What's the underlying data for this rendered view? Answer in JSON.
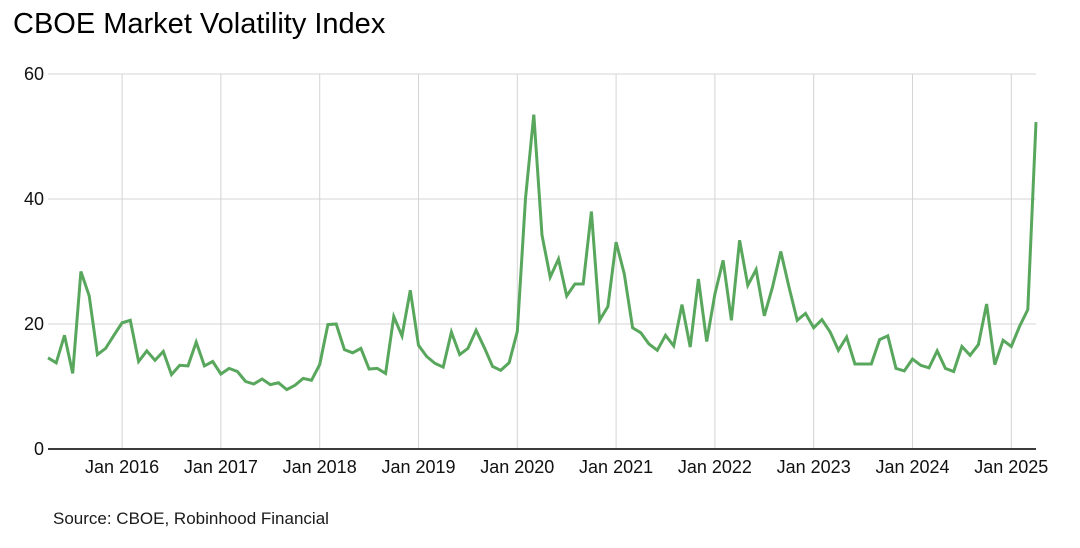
{
  "title": "CBOE Market Volatility Index",
  "source": "Source: CBOE, Robinhood Financial",
  "colors": {
    "line": "#58a75d",
    "grid": "#d4d4d4",
    "axis": "#3b3b3b",
    "text": "#111111",
    "background": "#ffffff"
  },
  "chart_data": {
    "type": "line",
    "title": "CBOE Market Volatility Index",
    "series_name": "CBOE Market Volatility Index (VIX)",
    "frequency": "monthly",
    "start_month": "2015-04",
    "end_month": "2025-04",
    "ylim": [
      0,
      60
    ],
    "y_ticks": [
      0,
      20,
      40,
      60
    ],
    "x_tick_labels": [
      "Jan 2016",
      "Jan 2017",
      "Jan 2018",
      "Jan 2019",
      "Jan 2020",
      "Jan 2021",
      "Jan 2022",
      "Jan 2023",
      "Jan 2024",
      "Jan 2025"
    ],
    "grid": true,
    "legend": false,
    "values": [
      14.6,
      13.8,
      18.2,
      12.1,
      28.4,
      24.5,
      15.1,
      16.1,
      18.2,
      20.2,
      20.6,
      14.0,
      15.7,
      14.2,
      15.6,
      11.9,
      13.4,
      13.3,
      17.1,
      13.3,
      14.0,
      12.0,
      12.9,
      12.4,
      10.8,
      10.4,
      11.2,
      10.3,
      10.6,
      9.5,
      10.2,
      11.3,
      11.0,
      13.5,
      19.9,
      20.0,
      15.9,
      15.4,
      16.1,
      12.8,
      12.9,
      12.1,
      21.2,
      18.1,
      25.4,
      16.6,
      14.8,
      13.7,
      13.1,
      18.7,
      15.1,
      16.1,
      19.0,
      16.2,
      13.2,
      12.6,
      13.8,
      18.8,
      40.1,
      53.5,
      34.2,
      27.5,
      30.4,
      24.5,
      26.4,
      26.4,
      38.0,
      20.6,
      22.8,
      33.1,
      28.0,
      19.4,
      18.6,
      16.8,
      15.8,
      18.2,
      16.5,
      23.1,
      16.3,
      27.2,
      17.2,
      24.8,
      30.2,
      20.6,
      33.4,
      26.2,
      28.7,
      21.3,
      25.9,
      31.6,
      25.9,
      20.6,
      21.7,
      19.4,
      20.7,
      18.7,
      15.8,
      17.9,
      13.6,
      13.6,
      13.6,
      17.5,
      18.1,
      12.9,
      12.5,
      14.4,
      13.4,
      13.0,
      15.7,
      12.9,
      12.4,
      16.4,
      15.0,
      16.7,
      23.2,
      13.5,
      17.4,
      16.4,
      19.6,
      22.3,
      52.3
    ]
  }
}
